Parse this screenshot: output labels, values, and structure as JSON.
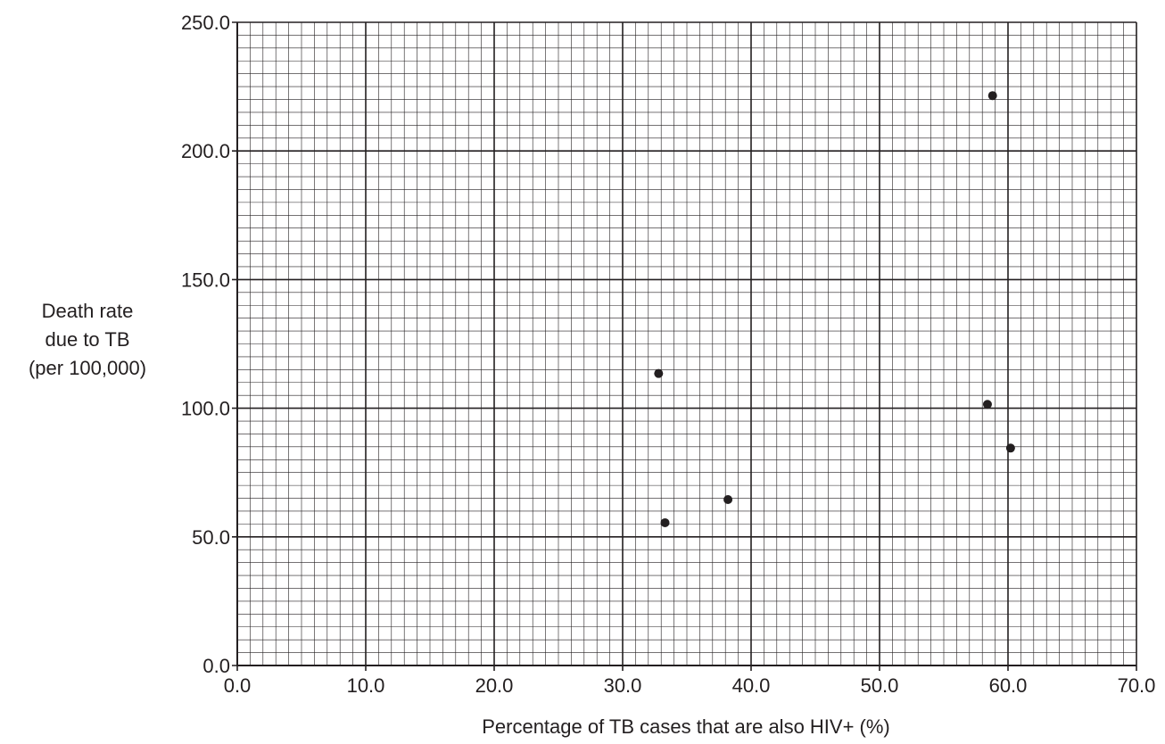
{
  "chart_data": {
    "type": "scatter",
    "title": "",
    "xlabel": "Percentage of TB cases that are also HIV+ (%)",
    "ylabel": [
      "Death rate",
      "due to TB",
      "(per 100,000)"
    ],
    "xlim": [
      0,
      70
    ],
    "ylim": [
      0,
      250
    ],
    "x_ticks": [
      "0.0",
      "10.0",
      "20.0",
      "30.0",
      "40.0",
      "50.0",
      "60.0",
      "70.0"
    ],
    "y_ticks": [
      "0.0",
      "50.0",
      "100.0",
      "150.0",
      "200.0",
      "250.0"
    ],
    "grid": "graph-paper (major every 10 x / 50 y, minor every 1 x / 5 y)",
    "points": [
      {
        "x": 32.8,
        "y": 113.5
      },
      {
        "x": 33.3,
        "y": 55.5
      },
      {
        "x": 38.2,
        "y": 64.5
      },
      {
        "x": 58.4,
        "y": 101.5
      },
      {
        "x": 58.8,
        "y": 221.5
      },
      {
        "x": 60.2,
        "y": 84.5
      }
    ],
    "colors": {
      "ink": "#231f20",
      "grid": "#231f20"
    }
  }
}
